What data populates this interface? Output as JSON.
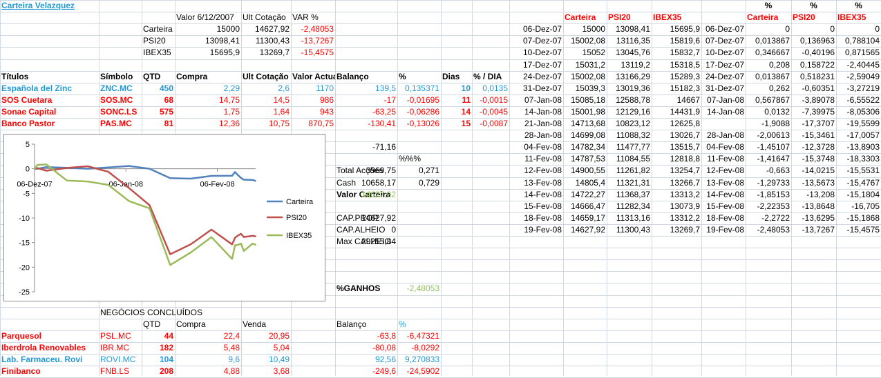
{
  "colors": {
    "accent_blue": "#1f9ad6",
    "red": "#ff0000",
    "green": "#92c45a",
    "gridline": "#d0d7e5",
    "carteira_line": "#4f81bd",
    "psi20_line": "#c0504d",
    "ibex35_line": "#9bbb59"
  },
  "title": "Carteira Velazquez",
  "summary": {
    "headers": [
      "Valor 6/12/2007",
      "Ult Cotação",
      "VAR %"
    ],
    "rows": [
      {
        "name": "Carteira",
        "valor": "15000",
        "ult": "14627,92",
        "var": "-2,48053"
      },
      {
        "name": "PSI20",
        "valor": "13098,41",
        "ult": "11300,43",
        "var": "-13,7267"
      },
      {
        "name": "IBEX35",
        "valor": "15695,9",
        "ult": "13269,7",
        "var": "-15,4575"
      }
    ]
  },
  "holdings": {
    "headers": [
      "Títulos",
      "Símbolo",
      "QTD",
      "Compra",
      "Ult Cotação",
      "Valor Actual",
      "Balanço",
      "%",
      "Dias",
      "% / DIA"
    ],
    "rows": [
      {
        "titulo": "Española del Zinc",
        "simbolo": "ZNC.MC",
        "qtd": "450",
        "compra": "2,29",
        "ult": "2,6",
        "valor": "1170",
        "balanco": "139,5",
        "pct": "0,135371",
        "dias": "10",
        "pct_dia": "0,0135",
        "tone": "blue"
      },
      {
        "titulo": "SOS Cuetara",
        "simbolo": "SOS.MC",
        "qtd": "68",
        "compra": "14,75",
        "ult": "14,5",
        "valor": "986",
        "balanco": "-17",
        "pct": "-0,01695",
        "dias": "11",
        "pct_dia": "-0,0015",
        "tone": "red"
      },
      {
        "titulo": "Sonae Capital",
        "simbolo": "SONC.LS",
        "qtd": "575",
        "compra": "1,75",
        "ult": "1,64",
        "valor": "943",
        "balanco": "-63,25",
        "pct": "-0,06286",
        "dias": "14",
        "pct_dia": "-0,0045",
        "tone": "red"
      },
      {
        "titulo": "Banco Pastor",
        "simbolo": "PAS.MC",
        "qtd": "81",
        "compra": "12,36",
        "ult": "10,75",
        "valor": "870,75",
        "balanco": "-130,41",
        "pct": "-0,13026",
        "dias": "15",
        "pct_dia": "-0,0087",
        "tone": "red"
      }
    ]
  },
  "totals": {
    "balanco_total": "-71,16",
    "pct_header": "%%%",
    "acc_label": "Total Acções",
    "acc_value": "3969,75",
    "acc_pct": "0,271",
    "cash_label": "Cash",
    "cash_value": "10658,17",
    "cash_pct": "0,729",
    "valor_label": "Valor Carteira",
    "valor_value": "14627,92",
    "capprop_label": "CAP.PROP",
    "capprop_value": "14627,92",
    "capalheio_label": "CAP.ALHEIO",
    "capalheio_value": "0",
    "max_label": "Max CALHEIO",
    "max_value": "29255,84",
    "ganhos_label": "%GANHOS",
    "ganhos_value": "-2,48053"
  },
  "concluded": {
    "title": "NEGÓCIOS CONCLUÍDOS",
    "headers": {
      "qtd": "QTD",
      "compra": "Compra",
      "venda": "Venda",
      "balanco": "Balanço",
      "pct": "%"
    },
    "rows": [
      {
        "titulo": "Parquesol",
        "simbolo": "PSL.MC",
        "qtd": "44",
        "compra": "22,4",
        "venda": "20,95",
        "balanco": "-63,8",
        "pct": "-6,47321",
        "tone": "red"
      },
      {
        "titulo": "Iberdrola Renovables",
        "simbolo": "IBR.MC",
        "qtd": "182",
        "compra": "5,48",
        "venda": "5,04",
        "balanco": "-80,08",
        "pct": "-8,0292",
        "tone": "red"
      },
      {
        "titulo": "Lab. Farmaceu. Rovi",
        "simbolo": "ROVI.MC",
        "qtd": "104",
        "compra": "9,6",
        "venda": "10,49",
        "balanco": "92,56",
        "pct": "9,270833",
        "tone": "blue"
      },
      {
        "titulo": "Finibanco",
        "simbolo": "FNB.LS",
        "qtd": "208",
        "compra": "4,88",
        "venda": "3,68",
        "balanco": "-249,6",
        "pct": "-24,5902",
        "tone": "red"
      }
    ]
  },
  "history": {
    "headers": [
      "Carteira",
      "PSI20",
      "IBEX35"
    ],
    "pct_header_top": "%",
    "pct_headers": [
      "Carteira",
      "PSI20",
      "IBEX35"
    ],
    "rows": [
      {
        "date": "06-Dez-07",
        "carteira": "15000",
        "psi20": "13098,41",
        "ibex35": "15695,9",
        "date2": "06-Dez-07",
        "pc": "0",
        "pp": "0",
        "pi": "0"
      },
      {
        "date": "07-Dez-07",
        "carteira": "15002,08",
        "psi20": "13116,35",
        "ibex35": "15819,6",
        "date2": "07-Dez-07",
        "pc": "0,013867",
        "pp": "0,136963",
        "pi": "0,788104"
      },
      {
        "date": "10-Dez-07",
        "carteira": "15052",
        "psi20": "13045,76",
        "ibex35": "15832,7",
        "date2": "10-Dez-07",
        "pc": "0,346667",
        "pp": "-0,40196",
        "pi": "0,871565"
      },
      {
        "date": "17-Dez-07",
        "carteira": "15031,2",
        "psi20": "13119,2",
        "ibex35": "15318,5",
        "date2": "17-Dez-07",
        "pc": "0,208",
        "pp": "0,158722",
        "pi": "-2,40445"
      },
      {
        "date": "24-Dez-07",
        "carteira": "15002,08",
        "psi20": "13166,29",
        "ibex35": "15289,3",
        "date2": "24-Dez-07",
        "pc": "0,013867",
        "pp": "0,518231",
        "pi": "-2,59049"
      },
      {
        "date": "31-Dez-07",
        "carteira": "15039,3",
        "psi20": "13019,36",
        "ibex35": "15182,3",
        "date2": "31-Dez-07",
        "pc": "0,262",
        "pp": "-0,60351",
        "pi": "-3,27219"
      },
      {
        "date": "07-Jan-08",
        "carteira": "15085,18",
        "psi20": "12588,78",
        "ibex35": "14667",
        "date2": "07-Jan-08",
        "pc": "0,567867",
        "pp": "-3,89078",
        "pi": "-6,55522"
      },
      {
        "date": "14-Jan-08",
        "carteira": "15001,98",
        "psi20": "12129,16",
        "ibex35": "14431,9",
        "date2": "14-Jan-08",
        "pc": "0,0132",
        "pp": "-7,39975",
        "pi": "-8,05306"
      },
      {
        "date": "21-Jan-08",
        "carteira": "14713,68",
        "psi20": "10823,12",
        "ibex35": "12625,8",
        "date2": "21-Jan-08",
        "pc": "-1,9088",
        "pp": "-17,3707",
        "pi": "-19,5599"
      },
      {
        "date": "28-Jan-08",
        "carteira": "14699,08",
        "psi20": "11088,32",
        "ibex35": "13026,7",
        "date2": "28-Jan-08",
        "pc": "-2,00613",
        "pp": "-15,3461",
        "pi": "-17,0057"
      },
      {
        "date": "04-Fev-08",
        "carteira": "14782,34",
        "psi20": "11477,77",
        "ibex35": "13515,7",
        "date2": "04-Fev-08",
        "pc": "-1,45107",
        "pp": "-12,3728",
        "pi": "-13,8903"
      },
      {
        "date": "11-Fev-08",
        "carteira": "14787,53",
        "psi20": "11084,55",
        "ibex35": "12818,8",
        "date2": "11-Fev-08",
        "pc": "-1,41647",
        "pp": "-15,3748",
        "pi": "-18,3303"
      },
      {
        "date": "12-Fev-08",
        "carteira": "14900,55",
        "psi20": "11261,82",
        "ibex35": "13254,7",
        "date2": "12-Fev-08",
        "pc": "-0,663",
        "pp": "-14,0215",
        "pi": "-15,5531"
      },
      {
        "date": "13-Fev-08",
        "carteira": "14805,4",
        "psi20": "11321,31",
        "ibex35": "13266,7",
        "date2": "13-Fev-08",
        "pc": "-1,29733",
        "pp": "-13,5673",
        "pi": "-15,4767"
      },
      {
        "date": "14-Fev-08",
        "carteira": "14722,27",
        "psi20": "11368,37",
        "ibex35": "13313,2",
        "date2": "14-Fev-08",
        "pc": "-1,85153",
        "pp": "-13,208",
        "pi": "-15,1804"
      },
      {
        "date": "15-Fev-08",
        "carteira": "14666,47",
        "psi20": "11282,34",
        "ibex35": "13073,9",
        "date2": "15-Fev-08",
        "pc": "-2,22353",
        "pp": "-13,8648",
        "pi": "-16,705"
      },
      {
        "date": "18-Fev-08",
        "carteira": "14659,17",
        "psi20": "11313,16",
        "ibex35": "13312,2",
        "date2": "18-Fev-08",
        "pc": "-2,2722",
        "pp": "-13,6295",
        "pi": "-15,1868"
      },
      {
        "date": "19-Fev-08",
        "carteira": "14627,92",
        "psi20": "11300,43",
        "ibex35": "13269,7",
        "date2": "19-Fev-08",
        "pc": "-2,48053",
        "pp": "-13,7267",
        "pi": "-15,4575"
      }
    ]
  },
  "chart_data": {
    "type": "line",
    "x": [
      "06-Dez-07",
      "07-Dez-07",
      "10-Dez-07",
      "17-Dez-07",
      "24-Dez-07",
      "31-Dez-07",
      "07-Jan-08",
      "14-Jan-08",
      "21-Jan-08",
      "28-Jan-08",
      "04-Fev-08",
      "11-Fev-08",
      "12-Fev-08",
      "13-Fev-08",
      "14-Fev-08",
      "15-Fev-08",
      "18-Fev-08",
      "19-Fev-08"
    ],
    "x_dates": [
      "2007-12-06",
      "2007-12-07",
      "2007-12-10",
      "2007-12-17",
      "2007-12-24",
      "2007-12-31",
      "2008-01-07",
      "2008-01-14",
      "2008-01-21",
      "2008-01-28",
      "2008-02-04",
      "2008-02-11",
      "2008-02-12",
      "2008-02-13",
      "2008-02-14",
      "2008-02-15",
      "2008-02-18",
      "2008-02-19"
    ],
    "xticks": [
      "06-Dez-07",
      "06-Jan-08",
      "06-Fev-08"
    ],
    "xtick_dates": [
      "2007-12-06",
      "2008-01-06",
      "2008-02-06"
    ],
    "ylim": [
      -25,
      5
    ],
    "yticks": [
      5,
      0,
      -5,
      -10,
      -15,
      -20,
      -25
    ],
    "series": [
      {
        "name": "Carteira",
        "color": "#4f81bd",
        "values": [
          0,
          0.013867,
          0.346667,
          0.208,
          0.013867,
          0.262,
          0.567867,
          0.0132,
          -1.9088,
          -2.00613,
          -1.45107,
          -1.41647,
          -0.663,
          -1.29733,
          -1.85153,
          -2.22353,
          -2.2722,
          -2.48053
        ]
      },
      {
        "name": "PSI20",
        "color": "#c0504d",
        "values": [
          0,
          0.136963,
          -0.40196,
          0.158722,
          0.518231,
          -0.60351,
          -3.89078,
          -7.39975,
          -17.3707,
          -15.3461,
          -12.3728,
          -15.3748,
          -14.0215,
          -13.5673,
          -13.208,
          -13.8648,
          -13.6295,
          -13.7267
        ]
      },
      {
        "name": "IBEX35",
        "color": "#9bbb59",
        "values": [
          0,
          0.788104,
          0.871565,
          -2.40445,
          -2.59049,
          -3.27219,
          -6.55522,
          -8.05306,
          -19.5599,
          -17.0057,
          -13.8903,
          -18.3303,
          -15.5531,
          -15.4767,
          -15.1804,
          -16.705,
          -15.1868,
          -15.4575
        ]
      }
    ],
    "legend_position": "right",
    "grid": false
  }
}
